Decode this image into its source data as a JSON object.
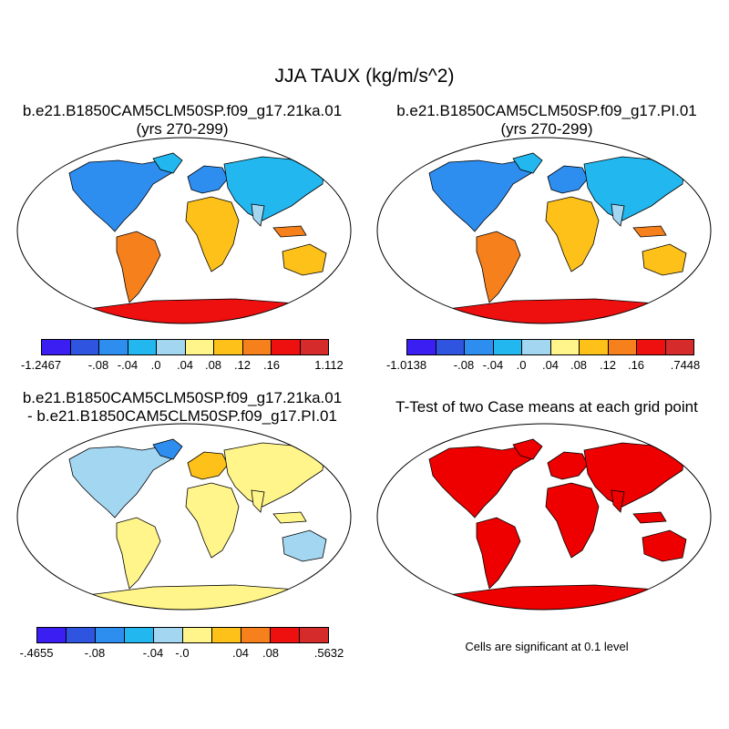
{
  "title": "JJA TAUX (kg/m/s^2)",
  "panels": [
    {
      "line1": "b.e21.B1850CAM5CLM50SP.f09_g17.21ka.01",
      "line2": "(yrs 270-299)"
    },
    {
      "line1": "b.e21.B1850CAM5CLM50SP.f09_g17.PI.01",
      "line2": "(yrs 270-299)"
    },
    {
      "line1": "b.e21.B1850CAM5CLM50SP.f09_g17.21ka.01",
      "line2": "- b.e21.B1850CAM5CLM50SP.f09_g17.PI.01"
    },
    {
      "line1": "T-Test of two Case means at each grid point",
      "line2": ""
    }
  ],
  "colorbars": [
    {
      "labels": [
        "-1.2467",
        "-.08",
        "-.04",
        ".0",
        ".04",
        ".08",
        ".12",
        ".16",
        "1.112"
      ]
    },
    {
      "labels": [
        "-1.0138",
        "-.08",
        "-.04",
        ".0",
        ".04",
        ".08",
        ".12",
        ".16",
        ".7448"
      ]
    },
    {
      "labels": [
        "-.4655",
        "-.08",
        "-.04",
        "-.0",
        ".04",
        ".08",
        ".5632"
      ]
    }
  ],
  "palette": [
    "#3a1ef2",
    "#2f55e0",
    "#2e8ef0",
    "#22b7ee",
    "#a3d6f0",
    "#fff58a",
    "#fdc11a",
    "#f6811c",
    "#ee0f0f",
    "#d62b2b"
  ],
  "significance_color": "#ee0000",
  "note": "Cells are significant at 0.1 level"
}
